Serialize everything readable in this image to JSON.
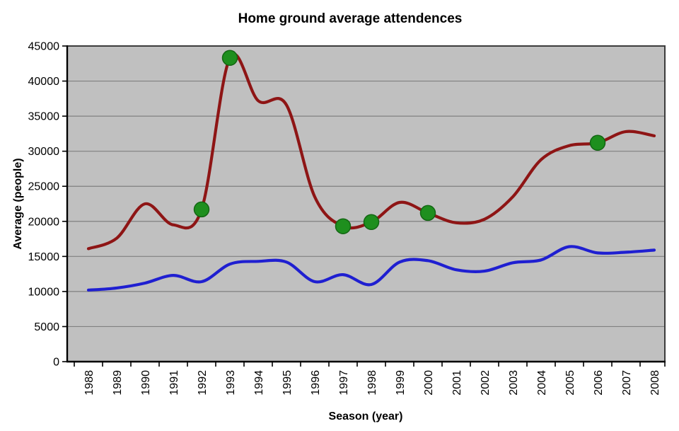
{
  "chart_data": {
    "type": "line",
    "title": "Home ground average attendences",
    "xlabel": "Season (year)",
    "ylabel": "Average (people)",
    "ylim": [
      0,
      45000
    ],
    "ytick_step": 5000,
    "ytick_labels": [
      "0",
      "5000",
      "10000",
      "15000",
      "20000",
      "25000",
      "30000",
      "35000",
      "40000",
      "45000"
    ],
    "grid": "horizontal",
    "legend": "none",
    "plot_bg_color": "#C0C0C0",
    "gridline_color": "#808080",
    "border_color": "#3C3C3C",
    "axis_color": "#000000",
    "categories": [
      "1988",
      "1989",
      "1990",
      "1991",
      "1992",
      "1993",
      "1994",
      "1995",
      "1996",
      "1997",
      "1998",
      "1999",
      "2000",
      "2001",
      "2002",
      "2003",
      "2004",
      "2005",
      "2006",
      "2007",
      "2008"
    ],
    "series": [
      {
        "name": "red",
        "color": "#8E1515",
        "values": [
          16100,
          17600,
          22500,
          19500,
          21700,
          43300,
          37200,
          36600,
          23500,
          19300,
          19900,
          22700,
          21200,
          19800,
          20300,
          23500,
          28800,
          30800,
          31200,
          32800,
          32200
        ]
      },
      {
        "name": "blue",
        "color": "#1F1FD1",
        "values": [
          10200,
          10500,
          11200,
          12300,
          11400,
          13900,
          14300,
          14200,
          11400,
          12400,
          11000,
          14200,
          14400,
          13100,
          12900,
          14100,
          14500,
          16400,
          15500,
          15600,
          15900
        ]
      }
    ],
    "markers": {
      "shape": "circle",
      "fill_color": "#1E8F1E",
      "edge_color": "#136613",
      "on_series": "red",
      "years": [
        "1992",
        "1993",
        "1997",
        "1998",
        "2000",
        "2006"
      ]
    }
  }
}
